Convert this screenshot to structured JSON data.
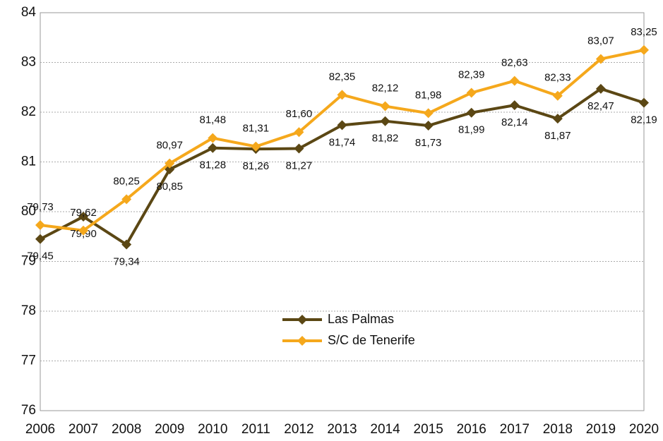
{
  "chart_data": {
    "type": "line",
    "categories": [
      "2006",
      "2007",
      "2008",
      "2009",
      "2010",
      "2011",
      "2012",
      "2013",
      "2014",
      "2015",
      "2016",
      "2017",
      "2018",
      "2019",
      "2020"
    ],
    "series": [
      {
        "name": "Las Palmas",
        "color": "#5b4714",
        "values": [
          79.45,
          79.9,
          79.34,
          80.85,
          81.28,
          81.26,
          81.27,
          81.74,
          81.82,
          81.73,
          81.99,
          82.14,
          81.87,
          82.47,
          82.19
        ],
        "value_labels": [
          "79,45",
          "79,90",
          "79,34",
          "80,85",
          "81,28",
          "81,26",
          "81,27",
          "81,74",
          "81,82",
          "81,73",
          "81,99",
          "82,14",
          "81,87",
          "82,47",
          "82,19"
        ]
      },
      {
        "name": "S/C de Tenerife",
        "color": "#f5a81c",
        "values": [
          79.73,
          79.62,
          80.25,
          80.97,
          81.48,
          81.31,
          81.6,
          82.35,
          82.12,
          81.98,
          82.39,
          82.63,
          82.33,
          83.07,
          83.25
        ],
        "value_labels": [
          "79,73",
          "79,62",
          "80,25",
          "80,97",
          "81,48",
          "81,31",
          "81,60",
          "82,35",
          "82,12",
          "81,98",
          "82,39",
          "82,63",
          "82,33",
          "83,07",
          "83,25"
        ]
      }
    ],
    "ylim": [
      76,
      84
    ],
    "yticks": [
      76,
      77,
      78,
      79,
      80,
      81,
      82,
      83,
      84
    ],
    "grid": true,
    "legend": "bottom-center"
  }
}
